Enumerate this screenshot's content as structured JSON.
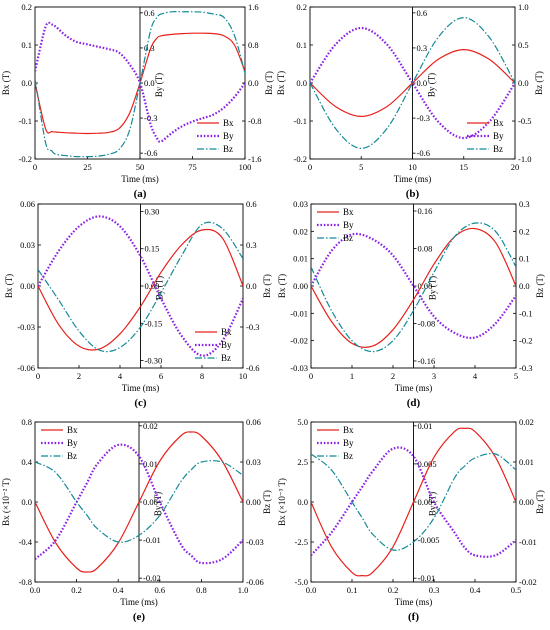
{
  "figure": {
    "panels": [
      {
        "id": "a",
        "caption": "(a)",
        "xlabel": "Time (ms)",
        "ylabel_left": "Bx (T)",
        "ylabel_mid": "By (T)",
        "ylabel_right": "Bz (T)",
        "x_ticks": [
          "0",
          "25",
          "50",
          "75",
          "100"
        ],
        "x_tick_values": [
          0,
          25,
          50,
          75,
          100
        ],
        "xlim": [
          0,
          100
        ],
        "split_x": 50,
        "left_ticks": [
          "-0.2",
          "-0.1",
          "0.0",
          "0.1",
          "0.2"
        ],
        "left_tick_values": [
          -0.2,
          -0.1,
          0.0,
          0.1,
          0.2
        ],
        "left_lim": [
          -0.2,
          0.2
        ],
        "mid_ticks": [
          "-0.6",
          "-0.3",
          "0.0",
          "0.3",
          "0.6"
        ],
        "mid_tick_values": [
          -0.6,
          -0.3,
          0.0,
          0.3,
          0.6
        ],
        "mid_lim": [
          -0.65,
          0.65
        ],
        "right_ticks": [
          "-1.6",
          "-0.8",
          "0.0",
          "0.8",
          "1.6"
        ],
        "right_tick_values": [
          -1.6,
          -0.8,
          0.0,
          0.8,
          1.6
        ],
        "right_lim": [
          -1.6,
          1.6
        ],
        "legend": {
          "position": "lower-right",
          "entries": [
            "Bx",
            "By",
            "Bz"
          ]
        }
      },
      {
        "id": "b",
        "caption": "(b)",
        "xlabel": "Time (ms)",
        "ylabel_left": "Bx (T)",
        "ylabel_mid": "By (T)",
        "ylabel_right": "Bz (T)",
        "x_ticks": [
          "0",
          "5",
          "10",
          "15",
          "20"
        ],
        "x_tick_values": [
          0,
          5,
          10,
          15,
          20
        ],
        "xlim": [
          0,
          20
        ],
        "split_x": 10,
        "left_ticks": [
          "-0.2",
          "-0.1",
          "0.0",
          "0.1",
          "0.2"
        ],
        "left_tick_values": [
          -0.2,
          -0.1,
          0.0,
          0.1,
          0.2
        ],
        "left_lim": [
          -0.2,
          0.2
        ],
        "mid_ticks": [
          "-0.6",
          "-0.3",
          "0.0",
          "0.3",
          "0.6"
        ],
        "mid_tick_values": [
          -0.6,
          -0.3,
          0.0,
          0.3,
          0.6
        ],
        "mid_lim": [
          -0.65,
          0.65
        ],
        "right_ticks": [
          "-1.0",
          "-0.5",
          "0.0",
          "0.5",
          "1.0"
        ],
        "right_tick_values": [
          -1.0,
          -0.5,
          0.0,
          0.5,
          1.0
        ],
        "right_lim": [
          -1.0,
          1.0
        ],
        "legend": {
          "position": "lower-right",
          "entries": [
            "Bx",
            "By",
            "Bz"
          ]
        }
      },
      {
        "id": "c",
        "caption": "(c)",
        "xlabel": "Time (ms)",
        "ylabel_left": "Bx (T)",
        "ylabel_mid": "By (T)",
        "ylabel_right": "Bz (T)",
        "x_ticks": [
          "0",
          "2",
          "4",
          "6",
          "8",
          "10"
        ],
        "x_tick_values": [
          0,
          2,
          4,
          6,
          8,
          10
        ],
        "xlim": [
          0,
          10
        ],
        "split_x": 5,
        "left_ticks": [
          "-0.06",
          "-0.03",
          "0.00",
          "0.03",
          "0.06"
        ],
        "left_tick_values": [
          -0.06,
          -0.03,
          0.0,
          0.03,
          0.06
        ],
        "left_lim": [
          -0.06,
          0.06
        ],
        "mid_ticks": [
          "-0.30",
          "-0.15",
          "0.00",
          "0.15",
          "0.30"
        ],
        "mid_tick_values": [
          -0.3,
          -0.15,
          0.0,
          0.15,
          0.3
        ],
        "mid_lim": [
          -0.33,
          0.33
        ],
        "right_ticks": [
          "-0.6",
          "-0.3",
          "0.0",
          "0.3",
          "0.6"
        ],
        "right_tick_values": [
          -0.6,
          -0.3,
          0.0,
          0.3,
          0.6
        ],
        "right_lim": [
          -0.6,
          0.6
        ],
        "legend": {
          "position": "lower-right",
          "entries": [
            "Bx",
            "By",
            "Bz"
          ]
        }
      },
      {
        "id": "d",
        "caption": "(d)",
        "xlabel": "Time (ms)",
        "ylabel_left": "Bx (T)",
        "ylabel_mid": "By (T)",
        "ylabel_right": "Bz (T)",
        "x_ticks": [
          "0",
          "1",
          "2",
          "3",
          "4",
          "5"
        ],
        "x_tick_values": [
          0,
          1,
          2,
          3,
          4,
          5
        ],
        "xlim": [
          0,
          5
        ],
        "split_x": 2.5,
        "left_ticks": [
          "-0.03",
          "-0.02",
          "-0.01",
          "0.00",
          "0.01",
          "0.02",
          "0.03"
        ],
        "left_tick_values": [
          -0.03,
          -0.02,
          -0.01,
          0.0,
          0.01,
          0.02,
          0.03
        ],
        "left_lim": [
          -0.03,
          0.03
        ],
        "mid_ticks": [
          "-0.16",
          "-0.08",
          "0.00",
          "0.08",
          "0.16"
        ],
        "mid_tick_values": [
          -0.16,
          -0.08,
          0.0,
          0.08,
          0.16
        ],
        "mid_lim": [
          -0.175,
          0.175
        ],
        "right_ticks": [
          "-0.3",
          "-0.2",
          "-0.1",
          "0.0",
          "0.1",
          "0.2",
          "0.3"
        ],
        "right_tick_values": [
          -0.3,
          -0.2,
          -0.1,
          0.0,
          0.1,
          0.2,
          0.3
        ],
        "right_lim": [
          -0.3,
          0.3
        ],
        "legend": {
          "position": "upper-left",
          "entries": [
            "Bx",
            "By",
            "Bz"
          ]
        }
      },
      {
        "id": "e",
        "caption": "(e)",
        "xlabel": "Time (ms)",
        "ylabel_left": "Bx (×10⁻² T)",
        "ylabel_mid": "By (T)",
        "ylabel_right": "Bz (T)",
        "x_ticks": [
          "0.0",
          "0.2",
          "0.4",
          "0.6",
          "0.8",
          "1.0"
        ],
        "x_tick_values": [
          0,
          0.2,
          0.4,
          0.6,
          0.8,
          1.0
        ],
        "xlim": [
          0,
          1.0
        ],
        "split_x": 0.5,
        "left_ticks": [
          "-0.8",
          "-0.4",
          "0.0",
          "0.4",
          "0.8"
        ],
        "left_tick_values": [
          -0.8,
          -0.4,
          0.0,
          0.4,
          0.8
        ],
        "left_lim": [
          -0.8,
          0.8
        ],
        "mid_ticks": [
          "-0.02",
          "-0.01",
          "0.00",
          "0.01",
          "0.02"
        ],
        "mid_tick_values": [
          -0.02,
          -0.01,
          0.0,
          0.01,
          0.02
        ],
        "mid_lim": [
          -0.021,
          0.021
        ],
        "right_ticks": [
          "-0.06",
          "-0.03",
          "0.00",
          "0.03",
          "0.06"
        ],
        "right_tick_values": [
          -0.06,
          -0.03,
          0.0,
          0.03,
          0.06
        ],
        "right_lim": [
          -0.06,
          0.06
        ],
        "legend": {
          "position": "upper-left",
          "entries": [
            "Bx",
            "By",
            "Bz"
          ]
        }
      },
      {
        "id": "f",
        "caption": "(f)",
        "xlabel": "Time (ms)",
        "ylabel_left": "Bx (×10⁻³ T)",
        "ylabel_mid": "By (T)",
        "ylabel_right": "Bz (T)",
        "x_ticks": [
          "0.0",
          "0.1",
          "0.2",
          "0.3",
          "0.4",
          "0.5"
        ],
        "x_tick_values": [
          0,
          0.1,
          0.2,
          0.3,
          0.4,
          0.5
        ],
        "xlim": [
          0,
          0.5
        ],
        "split_x": 0.25,
        "left_ticks": [
          "-5.0",
          "-2.5",
          "0.0",
          "2.5",
          "5.0"
        ],
        "left_tick_values": [
          -5.0,
          -2.5,
          0.0,
          2.5,
          5.0
        ],
        "left_lim": [
          -5.0,
          5.0
        ],
        "mid_ticks": [
          "-0.01",
          "-0.005",
          "0.00",
          "0.005",
          "0.01"
        ],
        "mid_tick_values": [
          -0.01,
          -0.005,
          0.0,
          0.005,
          0.01
        ],
        "mid_lim": [
          -0.0105,
          0.0105
        ],
        "right_ticks": [
          "-0.02",
          "-0.01",
          "0.00",
          "0.01",
          "0.02"
        ],
        "right_tick_values": [
          -0.02,
          -0.01,
          0.0,
          0.01,
          0.02
        ],
        "right_lim": [
          -0.02,
          0.02
        ],
        "legend": {
          "position": "upper-left",
          "entries": [
            "Bx",
            "By",
            "Bz"
          ]
        }
      }
    ],
    "colors": {
      "Bx": "#e8211c",
      "By": "#8b20e8",
      "Bz": "#138a96"
    }
  },
  "chart_data": [
    {
      "type": "line",
      "panel": "a",
      "x": [
        0,
        5,
        8,
        10,
        15,
        20,
        25,
        30,
        35,
        40,
        45,
        50,
        55,
        58,
        60,
        65,
        70,
        75,
        80,
        85,
        90,
        95,
        100
      ],
      "series": [
        {
          "name": "Bx",
          "axis": "left",
          "values": [
            0.0,
            -0.12,
            -0.128,
            -0.129,
            -0.131,
            -0.132,
            -0.133,
            -0.132,
            -0.13,
            -0.12,
            -0.08,
            0.0,
            0.09,
            0.118,
            0.124,
            0.128,
            0.13,
            0.131,
            0.131,
            0.13,
            0.124,
            0.1,
            0.03
          ]
        },
        {
          "name": "By",
          "axis": "mid",
          "values": [
            0.1,
            0.48,
            0.5,
            0.48,
            0.4,
            0.35,
            0.33,
            0.31,
            0.29,
            0.26,
            0.16,
            0.0,
            -0.35,
            -0.47,
            -0.5,
            -0.43,
            -0.37,
            -0.33,
            -0.3,
            -0.27,
            -0.21,
            -0.12,
            0.0
          ]
        },
        {
          "name": "Bz",
          "axis": "right",
          "values": [
            0.1,
            -1.25,
            -1.43,
            -1.5,
            -1.53,
            -1.55,
            -1.55,
            -1.54,
            -1.5,
            -1.4,
            -1.0,
            0.0,
            1.1,
            1.38,
            1.45,
            1.5,
            1.5,
            1.5,
            1.49,
            1.45,
            1.38,
            1.0,
            0.2
          ]
        }
      ]
    },
    {
      "type": "line",
      "panel": "b",
      "x": [
        0,
        2.5,
        5,
        7.5,
        10,
        12.5,
        15,
        17.5,
        20
      ],
      "series": [
        {
          "name": "Bx",
          "axis": "left",
          "values": [
            0.0,
            -0.062,
            -0.088,
            -0.062,
            0.0,
            0.062,
            0.088,
            0.062,
            0.0
          ]
        },
        {
          "name": "By",
          "axis": "mid",
          "values": [
            0.0,
            0.33,
            0.47,
            0.33,
            0.0,
            -0.33,
            -0.47,
            -0.33,
            0.0
          ]
        },
        {
          "name": "Bz",
          "axis": "right",
          "values": [
            0.0,
            -0.6,
            -0.86,
            -0.6,
            0.0,
            0.6,
            0.86,
            0.6,
            0.0
          ]
        }
      ]
    },
    {
      "type": "line",
      "panel": "c",
      "x": [
        0,
        1,
        2,
        3,
        4,
        5,
        6,
        7,
        8,
        9,
        10
      ],
      "series": [
        {
          "name": "Bx",
          "axis": "left",
          "values": [
            0.0,
            -0.028,
            -0.044,
            -0.046,
            -0.035,
            -0.015,
            0.01,
            0.03,
            0.041,
            0.035,
            0.0
          ]
        },
        {
          "name": "By",
          "axis": "mid",
          "values": [
            0.0,
            0.14,
            0.24,
            0.28,
            0.24,
            0.12,
            -0.05,
            -0.2,
            -0.28,
            -0.22,
            -0.05
          ]
        },
        {
          "name": "Bz",
          "axis": "right",
          "values": [
            0.12,
            -0.1,
            -0.33,
            -0.47,
            -0.45,
            -0.3,
            -0.05,
            0.22,
            0.45,
            0.42,
            0.2
          ]
        }
      ]
    },
    {
      "type": "line",
      "panel": "d",
      "x": [
        0,
        0.5,
        1,
        1.5,
        2,
        2.5,
        3,
        3.5,
        4,
        4.5,
        5
      ],
      "series": [
        {
          "name": "Bx",
          "axis": "left",
          "values": [
            0.0,
            -0.013,
            -0.021,
            -0.022,
            -0.016,
            -0.005,
            0.008,
            0.018,
            0.021,
            0.016,
            0.0
          ]
        },
        {
          "name": "By",
          "axis": "mid",
          "values": [
            0.0,
            0.075,
            0.11,
            0.1,
            0.065,
            0.0,
            -0.065,
            -0.1,
            -0.11,
            -0.08,
            -0.02
          ]
        },
        {
          "name": "Bz",
          "axis": "right",
          "values": [
            0.07,
            -0.09,
            -0.2,
            -0.24,
            -0.2,
            -0.09,
            0.05,
            0.18,
            0.23,
            0.2,
            0.07
          ]
        }
      ]
    },
    {
      "type": "line",
      "panel": "e",
      "x": [
        0,
        0.1,
        0.2,
        0.25,
        0.3,
        0.4,
        0.5,
        0.6,
        0.7,
        0.75,
        0.8,
        0.9,
        1.0
      ],
      "series": [
        {
          "name": "Bx",
          "axis": "left",
          "values": [
            0.0,
            -0.41,
            -0.66,
            -0.7,
            -0.66,
            -0.41,
            0.0,
            0.41,
            0.66,
            0.7,
            0.66,
            0.41,
            0.0
          ]
        },
        {
          "name": "By",
          "axis": "mid",
          "values": [
            -0.015,
            -0.01,
            0.0,
            0.005,
            0.01,
            0.015,
            0.012,
            0.0,
            -0.011,
            -0.014,
            -0.016,
            -0.015,
            -0.01
          ]
        },
        {
          "name": "Bz",
          "axis": "right",
          "values": [
            0.03,
            0.022,
            0.0,
            -0.01,
            -0.02,
            -0.03,
            -0.025,
            -0.01,
            0.015,
            0.024,
            0.03,
            0.03,
            0.02
          ]
        }
      ]
    },
    {
      "type": "line",
      "panel": "f",
      "x": [
        0,
        0.05,
        0.1,
        0.125,
        0.15,
        0.2,
        0.25,
        0.3,
        0.35,
        0.375,
        0.4,
        0.45,
        0.5
      ],
      "series": [
        {
          "name": "Bx",
          "axis": "left",
          "values": [
            0.0,
            -2.8,
            -4.4,
            -4.6,
            -4.4,
            -2.8,
            0.0,
            2.8,
            4.4,
            4.6,
            4.4,
            2.8,
            0.0
          ]
        },
        {
          "name": "By",
          "axis": "mid",
          "values": [
            -0.007,
            -0.004,
            0.0,
            0.002,
            0.004,
            0.007,
            0.006,
            0.0,
            -0.004,
            -0.006,
            -0.007,
            -0.007,
            -0.005
          ]
        },
        {
          "name": "Bz",
          "axis": "right",
          "values": [
            0.012,
            0.008,
            0.0,
            -0.004,
            -0.008,
            -0.012,
            -0.01,
            -0.004,
            0.006,
            0.009,
            0.011,
            0.012,
            0.008
          ]
        }
      ]
    }
  ]
}
